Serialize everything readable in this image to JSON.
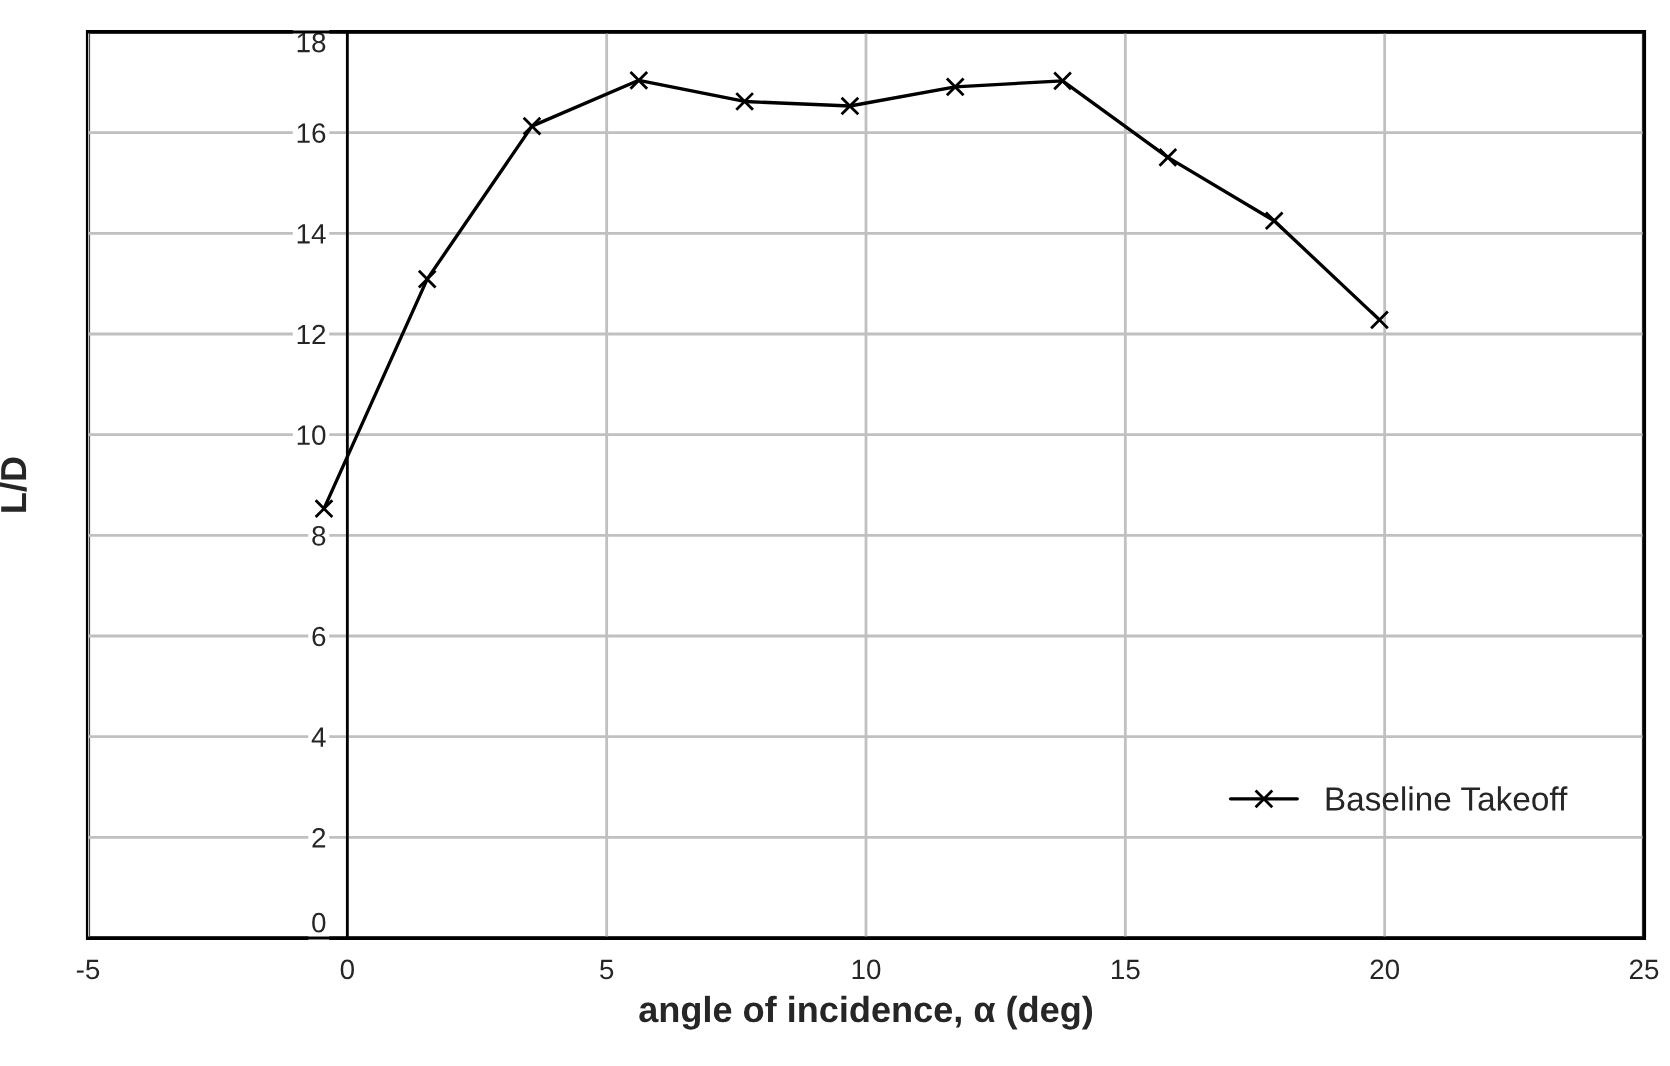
{
  "chart_data": {
    "type": "line",
    "xlabel": "angle of incidence, α (deg)",
    "ylabel": "L/D",
    "x": [
      -0.45,
      1.54,
      3.56,
      5.62,
      7.66,
      9.69,
      11.72,
      13.79,
      15.82,
      17.87,
      19.9
    ],
    "series": [
      {
        "name": "Baseline Takeoff",
        "color": "#000000",
        "values": [
          8.53,
          13.09,
          16.13,
          17.04,
          16.62,
          16.53,
          16.91,
          17.03,
          15.51,
          14.25,
          12.28
        ]
      }
    ],
    "xlim": [
      -5,
      25
    ],
    "xticks": [
      -5,
      0,
      5,
      10,
      15,
      20,
      25
    ],
    "ylim": [
      0,
      18
    ],
    "yticks": [
      0,
      2,
      4,
      6,
      8,
      10,
      12,
      14,
      16,
      18
    ],
    "grid": true,
    "legend": "bottom right",
    "marker": "cross",
    "line_style": "solid"
  }
}
